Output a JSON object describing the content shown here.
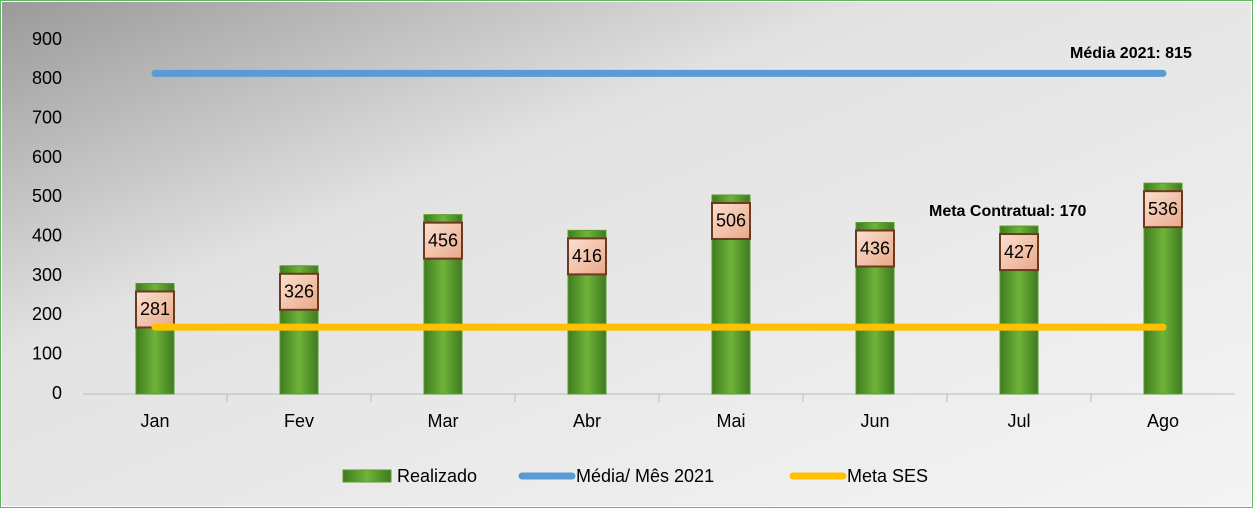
{
  "chart_data": {
    "type": "bar",
    "categories": [
      "Jan",
      "Fev",
      "Mar",
      "Abr",
      "Mai",
      "Jun",
      "Jul",
      "Ago"
    ],
    "series": [
      {
        "name": "Realizado",
        "type": "bar",
        "color": "#5a9a2e",
        "values": [
          281,
          326,
          456,
          416,
          506,
          436,
          427,
          536
        ]
      },
      {
        "name": "Média/ Mês 2021",
        "type": "line",
        "color": "#5b9bd5",
        "values": [
          815,
          815,
          815,
          815,
          815,
          815,
          815,
          815
        ]
      },
      {
        "name": "Meta SES",
        "type": "line",
        "color": "#ffc000",
        "values": [
          170,
          170,
          170,
          170,
          170,
          170,
          170,
          170
        ]
      }
    ],
    "annotations": [
      "Média 2021: 815",
      "Meta Contratual: 170"
    ],
    "ylim": [
      0,
      900
    ],
    "yticks": [
      0,
      100,
      200,
      300,
      400,
      500,
      600,
      700,
      800,
      900
    ],
    "grid": false,
    "legend": "bottom"
  }
}
